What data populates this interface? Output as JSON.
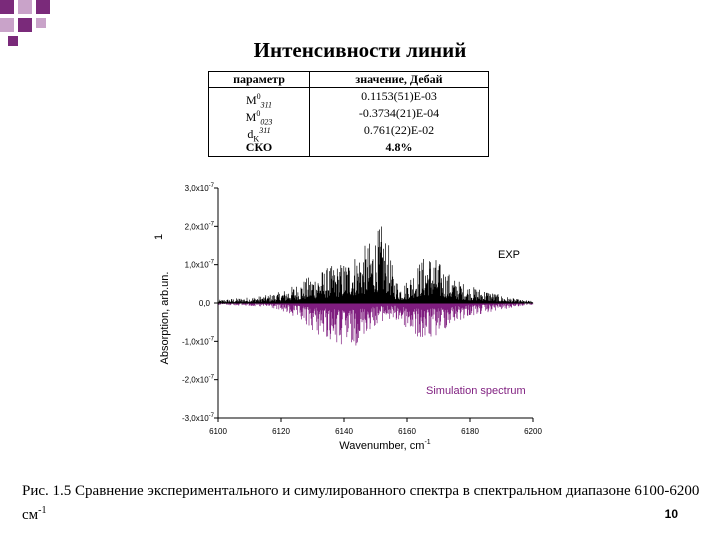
{
  "slide": {
    "title": "Интенсивности линий",
    "page_number": "10",
    "accent_color": "#7a2a7a",
    "accent_light": "#c9a3c9"
  },
  "param_table": {
    "headers": [
      "параметр",
      "значение, Дебай"
    ],
    "rows": [
      {
        "param_base": "M",
        "param_sup": "0",
        "param_sub": "311",
        "value": "0.1153(51)E-03"
      },
      {
        "param_base": "M",
        "param_sup": "0",
        "param_sub": "023",
        "value": "-0.3734(21)E-04"
      },
      {
        "param_base": "d",
        "param_sub": "K",
        "param_sup": "311",
        "value": "0.761(22)E-02"
      }
    ],
    "last_row": {
      "param": "СКО",
      "value": "4.8%"
    }
  },
  "caption": {
    "text_main": "Рис. 1.5 Сравнение экспериментального и симулированного спектра  в спектральном диапазоне  6100-6200 см",
    "text_sup": "-1"
  },
  "chart_data": {
    "type": "line",
    "title": "",
    "xlabel": "Wavenumber, cm",
    "xlabel_sup": "-1",
    "ylabel": "Absorption, arb.un.",
    "ylabel_tick_corner": "1",
    "xlim": [
      6100,
      6200
    ],
    "ylim": [
      -3e-07,
      3e-07
    ],
    "x_ticks": [
      "6100",
      "6120",
      "6140",
      "6160",
      "6180",
      "6200"
    ],
    "y_ticks": [
      "3,0x10",
      "2,0x10",
      "1,0x10",
      "0,0",
      "-1,0x10",
      "-2,0x10",
      "-3,0x10"
    ],
    "y_tick_exponent": "-7",
    "y_tick_values": [
      3e-07,
      2e-07,
      1e-07,
      0,
      -1e-07,
      -2e-07,
      -3e-07
    ],
    "series": [
      {
        "name": "EXP",
        "color": "#000000",
        "direction": "up",
        "envelope": [
          [
            6100,
            8e-09
          ],
          [
            6105,
            1.2e-08
          ],
          [
            6110,
            1.5e-08
          ],
          [
            6115,
            2e-08
          ],
          [
            6120,
            3e-08
          ],
          [
            6125,
            5e-08
          ],
          [
            6130,
            7.5e-08
          ],
          [
            6135,
            9.5e-08
          ],
          [
            6138,
            1.02e-07
          ],
          [
            6140,
            1.1e-07
          ],
          [
            6145,
            1.4e-07
          ],
          [
            6148,
            1.6e-07
          ],
          [
            6150,
            1.85e-07
          ],
          [
            6152,
            2.05e-07
          ],
          [
            6154,
            1.6e-07
          ],
          [
            6156,
            7e-08
          ],
          [
            6158,
            5e-08
          ],
          [
            6160,
            6e-08
          ],
          [
            6162,
            9e-08
          ],
          [
            6165,
            1.2e-07
          ],
          [
            6167,
            1.3e-07
          ],
          [
            6169,
            1.2e-07
          ],
          [
            6172,
            9e-08
          ],
          [
            6175,
            6.5e-08
          ],
          [
            6180,
            4.5e-08
          ],
          [
            6185,
            3.5e-08
          ],
          [
            6190,
            2e-08
          ],
          [
            6195,
            1e-08
          ],
          [
            6200,
            5e-09
          ]
        ]
      },
      {
        "name": "Simulation spectrum",
        "color": "#7f1d7f",
        "direction": "down",
        "envelope": [
          [
            6100,
            5e-09
          ],
          [
            6110,
            8e-09
          ],
          [
            6118,
            1.5e-08
          ],
          [
            6122,
            3e-08
          ],
          [
            6126,
            5e-08
          ],
          [
            6130,
            7.5e-08
          ],
          [
            6133,
            9e-08
          ],
          [
            6136,
            1.02e-07
          ],
          [
            6138,
            1.15e-07
          ],
          [
            6141,
            1.3e-07
          ],
          [
            6144,
            1.1e-07
          ],
          [
            6147,
            8e-08
          ],
          [
            6150,
            6e-08
          ],
          [
            6153,
            4.5e-08
          ],
          [
            6157,
            5e-08
          ],
          [
            6160,
            7e-08
          ],
          [
            6163,
            9.5e-08
          ],
          [
            6166,
            1.05e-07
          ],
          [
            6169,
            9e-08
          ],
          [
            6172,
            7e-08
          ],
          [
            6176,
            5e-08
          ],
          [
            6180,
            3.5e-08
          ],
          [
            6185,
            2.8e-08
          ],
          [
            6190,
            1.8e-08
          ],
          [
            6195,
            1e-08
          ],
          [
            6200,
            5e-09
          ]
        ]
      }
    ],
    "legend_placement": "series labels inside plot: EXP top-right above axis, Simulation spectrum bottom-right below axis"
  }
}
